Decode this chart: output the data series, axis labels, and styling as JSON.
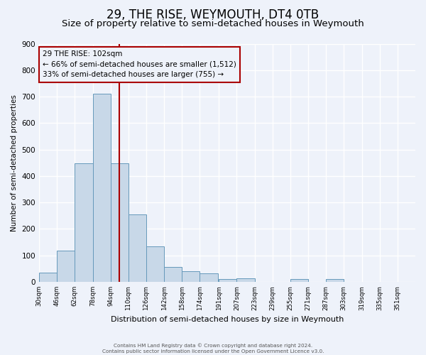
{
  "title": "29, THE RISE, WEYMOUTH, DT4 0TB",
  "subtitle": "Size of property relative to semi-detached houses in Weymouth",
  "xlabel": "Distribution of semi-detached houses by size in Weymouth",
  "ylabel": "Number of semi-detached properties",
  "footer_line1": "Contains HM Land Registry data © Crown copyright and database right 2024.",
  "footer_line2": "Contains public sector information licensed under the Open Government Licence v3.0.",
  "bin_labels": [
    "30sqm",
    "46sqm",
    "62sqm",
    "78sqm",
    "94sqm",
    "110sqm",
    "126sqm",
    "142sqm",
    "158sqm",
    "174sqm",
    "191sqm",
    "207sqm",
    "223sqm",
    "239sqm",
    "255sqm",
    "271sqm",
    "287sqm",
    "303sqm",
    "319sqm",
    "335sqm",
    "351sqm"
  ],
  "bin_left_edges": [
    30,
    46,
    62,
    78,
    94,
    110,
    126,
    142,
    158,
    174,
    191,
    207,
    223,
    239,
    255,
    271,
    287,
    303,
    319,
    335,
    351
  ],
  "bar_values": [
    35,
    118,
    447,
    710,
    447,
    255,
    135,
    57,
    40,
    32,
    10,
    14,
    0,
    0,
    10,
    0,
    10,
    0,
    0,
    0,
    0
  ],
  "bar_color": "#c8d8e8",
  "bar_edgecolor": "#6699bb",
  "bin_width": 16,
  "vline_x": 102,
  "vline_color": "#aa0000",
  "annotation_title": "29 THE RISE: 102sqm",
  "annotation_line1": "← 66% of semi-detached houses are smaller (1,512)",
  "annotation_line2": "33% of semi-detached houses are larger (755) →",
  "annotation_box_edgecolor": "#aa0000",
  "ylim": [
    0,
    900
  ],
  "yticks": [
    0,
    100,
    200,
    300,
    400,
    500,
    600,
    700,
    800,
    900
  ],
  "background_color": "#eef2fa",
  "grid_color": "#ffffff",
  "title_fontsize": 12,
  "subtitle_fontsize": 9.5
}
